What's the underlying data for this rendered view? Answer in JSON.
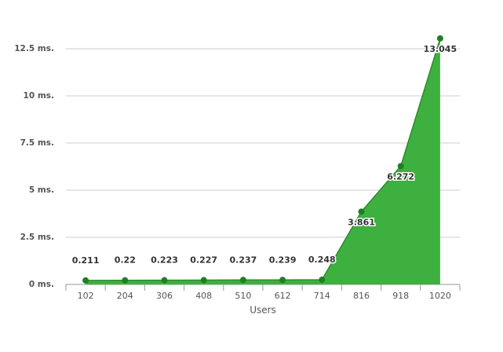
{
  "chart_data": {
    "type": "area",
    "x_label": "Users",
    "categories": [
      "102",
      "204",
      "306",
      "408",
      "510",
      "612",
      "714",
      "816",
      "918",
      "1020"
    ],
    "values": [
      0.211,
      0.22,
      0.223,
      0.227,
      0.237,
      0.239,
      0.248,
      3.861,
      6.272,
      13.045
    ],
    "color": "#3db03f",
    "line_color": "#2e8b30",
    "point_color": "#1f7f22",
    "ylim": [
      0,
      12.5
    ],
    "yticks": [
      {
        "value": 0,
        "label": "0 ms."
      },
      {
        "value": 2.5,
        "label": "2.5 ms."
      },
      {
        "value": 5,
        "label": "5 ms."
      },
      {
        "value": 7.5,
        "label": "7.5 ms."
      },
      {
        "value": 10,
        "label": "10 ms."
      },
      {
        "value": 12.5,
        "label": "12.5 ms."
      }
    ],
    "grid": true
  }
}
